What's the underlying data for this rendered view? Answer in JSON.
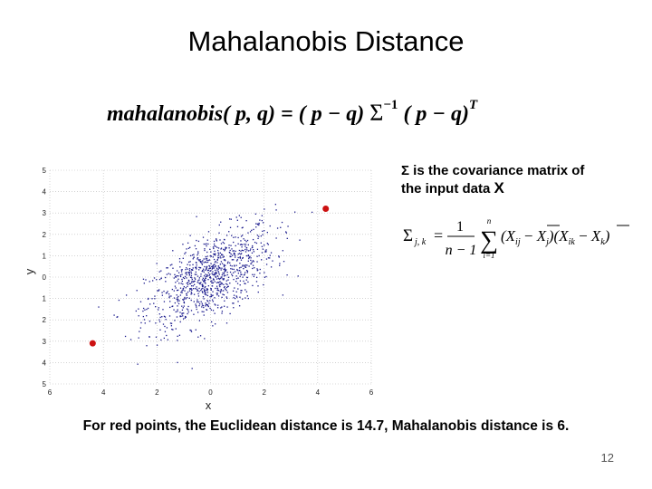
{
  "slide": {
    "title": "Mahalanobis Distance",
    "formula": {
      "lhs": "mahalanobis",
      "args": "( p, q) = ( p − q)",
      "sigma": "Σ",
      "inv": "−1",
      "rhs": "( p − q)",
      "transpose": "T"
    },
    "sigma_note": {
      "line1": "Σ is the covariance matrix of",
      "line2_prefix": "the input data ",
      "line2_var": "X"
    },
    "covariance_formula": {
      "lhs_sub": "j, k",
      "frac_num": "1",
      "frac_den": "n − 1",
      "sum_top": "n",
      "sum_bottom": "i=1",
      "term1": "(X",
      "term1_sub": "ij",
      "minus1": " − ",
      "mean1": "X",
      "mean1_sub": "j",
      "term2": ")(X",
      "term2_sub": "ik",
      "minus2": " − ",
      "mean2": "X",
      "mean2_sub": "k",
      "close": ")"
    },
    "caption": "For red points, the Euclidean distance is 14.7, Mahalanobis distance is 6.",
    "page_number": "12"
  },
  "chart_data": {
    "type": "scatter",
    "xlabel": "x",
    "ylabel": "y",
    "xlim": [
      -6,
      6
    ],
    "ylim": [
      -5,
      5
    ],
    "x_ticks": [
      "6",
      "4",
      "2",
      "0",
      "2",
      "4",
      "6"
    ],
    "y_ticks": [
      "5",
      "4",
      "3",
      "2",
      "1",
      "0",
      "1",
      "2",
      "3",
      "4",
      "5"
    ],
    "grid": true,
    "series": [
      {
        "color": "#1a1a8c",
        "n_points": 1000,
        "mean": [
          0,
          0
        ],
        "std": [
          1.2,
          1.2
        ],
        "correlation": 0.6
      },
      {
        "color": "#cc1111",
        "points": [
          [
            4.3,
            3.2
          ],
          [
            -4.4,
            -3.1
          ]
        ]
      }
    ]
  }
}
